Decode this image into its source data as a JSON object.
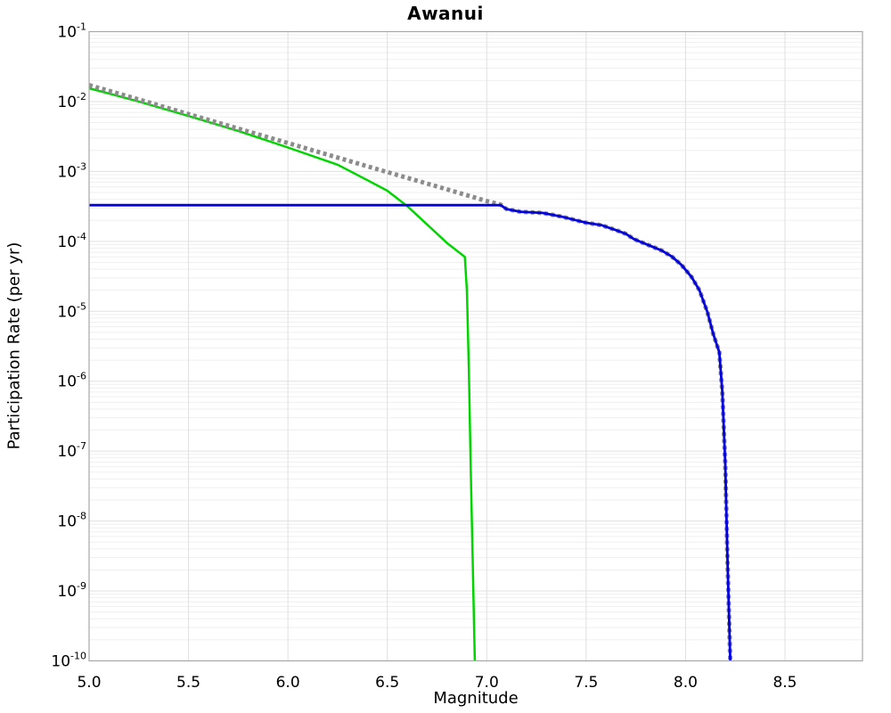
{
  "chart_data": {
    "type": "line",
    "title": "Awanui",
    "xlabel": "Magnitude",
    "ylabel": "Participation Rate (per yr)",
    "x_range": [
      5.0,
      8.89
    ],
    "y_log_range": [
      -10,
      -1
    ],
    "x_ticks": [
      5.0,
      5.5,
      6.0,
      6.5,
      7.0,
      7.5,
      8.0,
      8.5
    ],
    "x_tick_labels": [
      "5.0",
      "5.5",
      "6.0",
      "6.5",
      "7.0",
      "7.5",
      "8.0",
      "8.5"
    ],
    "y_tick_exponents": [
      -1,
      -2,
      -3,
      -4,
      -5,
      -6,
      -7,
      -8,
      -9,
      -10
    ],
    "grid": {
      "horizontal_major": true,
      "horizontal_minor_log": true,
      "vertical_major": true
    },
    "legend": "none",
    "colors": {
      "background": "#ffffff",
      "border": "#a8a8a8",
      "grid_major": "#e0e0e0",
      "grid_minor": "#efefef",
      "green": "#00d500",
      "gray": "#8c8c8c",
      "blue": "#0000e0"
    },
    "series": [
      {
        "name": "green-solid-curve",
        "color": "#00d500",
        "style": "solid",
        "width": 2.5,
        "points": [
          [
            5.0,
            0.0155
          ],
          [
            5.25,
            0.01
          ],
          [
            5.5,
            0.0062
          ],
          [
            5.75,
            0.0038
          ],
          [
            6.0,
            0.0022
          ],
          [
            6.25,
            0.00125
          ],
          [
            6.4,
            0.00075
          ],
          [
            6.5,
            0.00053
          ],
          [
            6.6,
            0.00032
          ],
          [
            6.7,
            0.000175
          ],
          [
            6.8,
            9.5e-05
          ],
          [
            6.89,
            6e-05
          ],
          [
            6.9,
            2e-05
          ],
          [
            6.91,
            1.5e-06
          ],
          [
            6.92,
            5e-08
          ],
          [
            6.94,
            1e-10
          ]
        ]
      },
      {
        "name": "gray-dotted-curve",
        "color": "#8c8c8c",
        "style": "dotted",
        "width": 5,
        "dash": "4 3.6",
        "points": [
          [
            5.0,
            0.0172
          ],
          [
            5.25,
            0.0107
          ],
          [
            5.5,
            0.0066
          ],
          [
            5.75,
            0.0041
          ],
          [
            6.0,
            0.00255
          ],
          [
            6.25,
            0.00158
          ],
          [
            6.5,
            0.00098
          ],
          [
            6.75,
            0.00061
          ],
          [
            7.0,
            0.000377
          ],
          [
            7.07,
            0.000335
          ],
          [
            7.1,
            0.00029
          ],
          [
            7.17,
            0.000265
          ],
          [
            7.28,
            0.000255
          ],
          [
            7.33,
            0.00024
          ],
          [
            7.38,
            0.000225
          ],
          [
            7.45,
            0.0002
          ],
          [
            7.5,
            0.000185
          ],
          [
            7.58,
            0.00017
          ],
          [
            7.62,
            0.000155
          ],
          [
            7.65,
            0.000145
          ],
          [
            7.7,
            0.000128
          ],
          [
            7.74,
            0.000108
          ],
          [
            7.78,
            9.7e-05
          ],
          [
            7.82,
            8.7e-05
          ],
          [
            7.88,
            7.4e-05
          ],
          [
            7.93,
            6.1e-05
          ],
          [
            7.98,
            4.6e-05
          ],
          [
            8.03,
            3.1e-05
          ],
          [
            8.07,
            2e-05
          ],
          [
            8.11,
            9.7e-06
          ],
          [
            8.14,
            4.7e-06
          ],
          [
            8.17,
            2.6e-06
          ],
          [
            8.185,
            7e-07
          ],
          [
            8.2,
            6.5e-08
          ],
          [
            8.21,
            3.5e-09
          ],
          [
            8.225,
            1e-10
          ]
        ]
      },
      {
        "name": "blue-solid-curve",
        "color": "#0000e0",
        "style": "solid",
        "width": 2.8,
        "points": [
          [
            5.0,
            0.00033
          ],
          [
            7.07,
            0.00033
          ],
          [
            7.1,
            0.00029
          ],
          [
            7.17,
            0.000265
          ],
          [
            7.28,
            0.000255
          ],
          [
            7.33,
            0.00024
          ],
          [
            7.38,
            0.000225
          ],
          [
            7.45,
            0.0002
          ],
          [
            7.5,
            0.000185
          ],
          [
            7.58,
            0.00017
          ],
          [
            7.62,
            0.000155
          ],
          [
            7.65,
            0.000145
          ],
          [
            7.7,
            0.000128
          ],
          [
            7.74,
            0.000108
          ],
          [
            7.78,
            9.7e-05
          ],
          [
            7.82,
            8.7e-05
          ],
          [
            7.88,
            7.4e-05
          ],
          [
            7.93,
            6.1e-05
          ],
          [
            7.98,
            4.6e-05
          ],
          [
            8.03,
            3.1e-05
          ],
          [
            8.07,
            2e-05
          ],
          [
            8.11,
            9.7e-06
          ],
          [
            8.14,
            4.7e-06
          ],
          [
            8.17,
            2.6e-06
          ],
          [
            8.185,
            7e-07
          ],
          [
            8.2,
            6.5e-08
          ],
          [
            8.21,
            3.5e-09
          ],
          [
            8.225,
            1e-10
          ]
        ]
      }
    ]
  }
}
